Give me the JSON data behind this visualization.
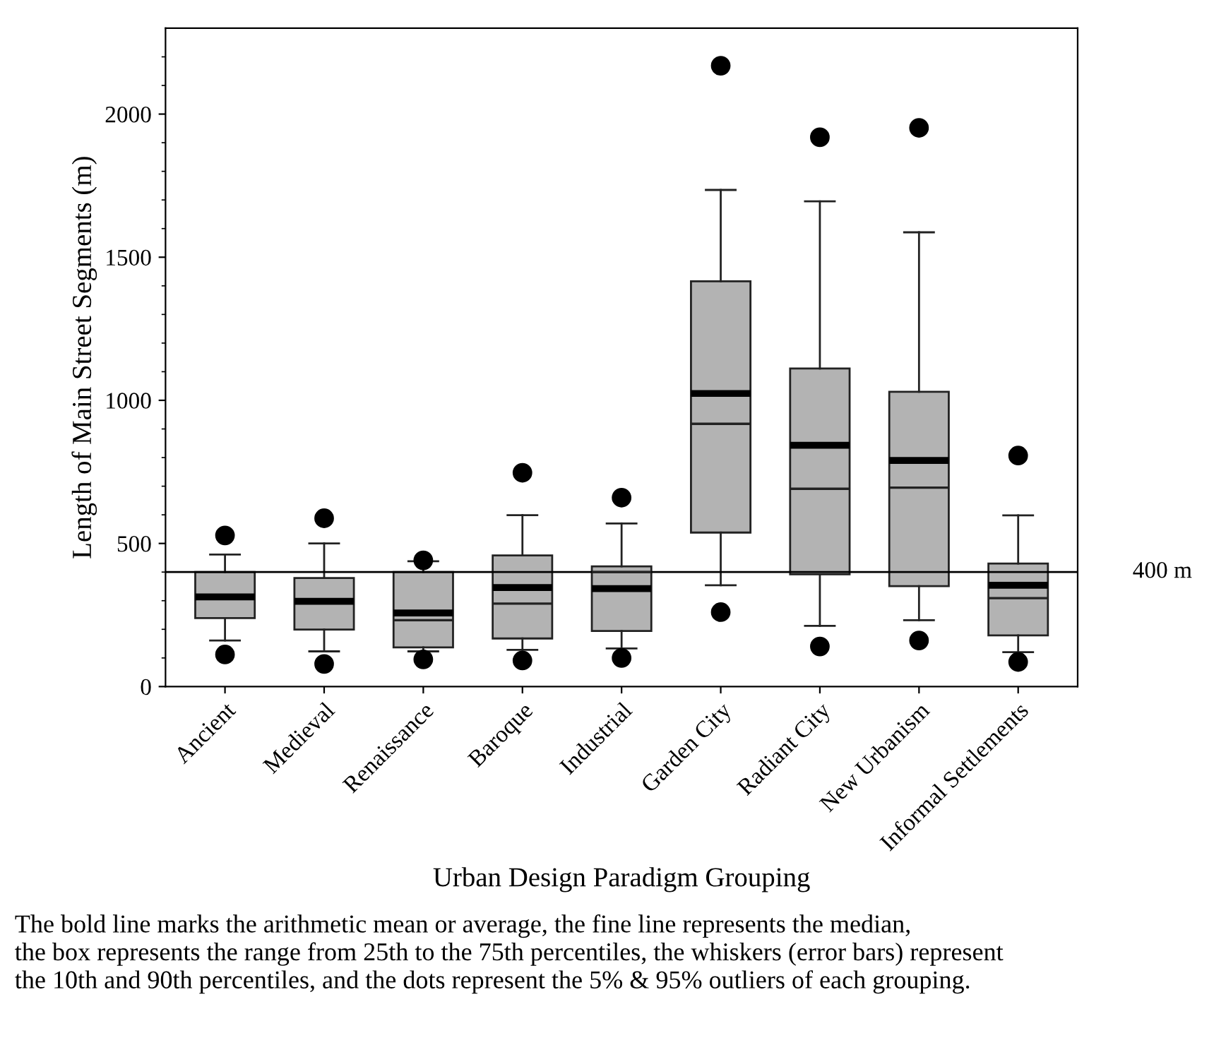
{
  "chart_data": {
    "type": "box",
    "xlabel": "Urban Design Paradigm Grouping",
    "ylabel": "Length of Main Street Segments (m)",
    "categories": [
      "Ancient",
      "Medieval",
      "Renaissance",
      "Baroque",
      "Industrial",
      "Garden City",
      "Radiant City",
      "New Urbanism",
      "Informal Settlements"
    ],
    "color": "#b3b3b3",
    "boxes": [
      {
        "low": 161,
        "q1": 239,
        "median": 313,
        "q3": 400,
        "high": 461,
        "mean": 313,
        "outliers": [
          528,
          112
        ]
      },
      {
        "low": 123,
        "q1": 199,
        "median": 298,
        "q3": 379,
        "high": 500,
        "mean": 298,
        "outliers": [
          588,
          79
        ]
      },
      {
        "low": 123,
        "q1": 137,
        "median": 232,
        "q3": 400,
        "high": 438,
        "mean": 257,
        "outliers": [
          441,
          95
        ]
      },
      {
        "low": 128,
        "q1": 168,
        "median": 290,
        "q3": 458,
        "high": 599,
        "mean": 346,
        "outliers": [
          747,
          91
        ]
      },
      {
        "low": 133,
        "q1": 194,
        "median": 400,
        "q3": 420,
        "high": 570,
        "mean": 342,
        "outliers": [
          660,
          100
        ]
      },
      {
        "low": 354,
        "q1": 538,
        "median": 918,
        "q3": 1416,
        "high": 1735,
        "mean": 1024,
        "outliers": [
          2169,
          260
        ]
      },
      {
        "low": 212,
        "q1": 392,
        "median": 691,
        "q3": 1111,
        "high": 1695,
        "mean": 843,
        "outliers": [
          1919,
          140
        ]
      },
      {
        "low": 232,
        "q1": 351,
        "median": 695,
        "q3": 1030,
        "high": 1587,
        "mean": 790,
        "outliers": [
          1952,
          161
        ]
      },
      {
        "low": 120,
        "q1": 179,
        "median": 309,
        "q3": 430,
        "high": 598,
        "mean": 354,
        "outliers": [
          807,
          86
        ]
      }
    ],
    "ylim": [
      0,
      2300
    ],
    "yticks": [
      0,
      {
        "value": 100,
        "label": null
      },
      {
        "value": 200,
        "label": null
      },
      {
        "value": 300,
        "label": null
      },
      {
        "value": 400,
        "label": null
      },
      500,
      {
        "value": 600,
        "label": null
      },
      {
        "value": 700,
        "label": null
      },
      {
        "value": 800,
        "label": null
      },
      {
        "value": 900,
        "label": null
      },
      1000,
      {
        "value": 1100,
        "label": null
      },
      {
        "value": 1200,
        "label": null
      },
      {
        "value": 1300,
        "label": null
      },
      {
        "value": 1400,
        "label": null
      },
      1500,
      {
        "value": 1600,
        "label": null
      },
      {
        "value": 1700,
        "label": null
      },
      {
        "value": 1800,
        "label": null
      },
      {
        "value": 1900,
        "label": null
      },
      2000,
      {
        "value": 2100,
        "label": null
      },
      {
        "value": 2200,
        "label": null
      }
    ],
    "ref_lines": [
      {
        "axis": "y",
        "value": 400,
        "label": "400 m",
        "color": "#000000"
      }
    ],
    "grid": false,
    "legend": false,
    "annotations": [
      "The bold line marks the arithmetic mean or average, the fine line represents the median,\nthe box represents the range from 25th to the 75th percentiles, the whiskers (error bars) represent\nthe 10th and 90th percentiles, and the dots represent the 5% & 95% outliers of each grouping."
    ]
  }
}
